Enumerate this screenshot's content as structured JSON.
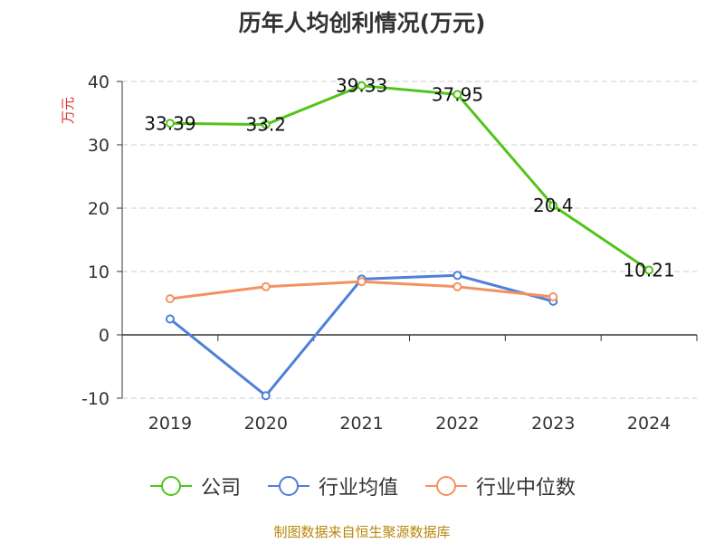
{
  "chart_data": {
    "type": "line",
    "title": "历年人均创利情况(万元)",
    "ylabel": "万元",
    "xlabel": "",
    "categories": [
      "2019",
      "2020",
      "2021",
      "2022",
      "2023",
      "2024"
    ],
    "ylim": [
      -10,
      40
    ],
    "yticks": [
      "-10",
      "0",
      "10",
      "20",
      "30",
      "40"
    ],
    "grid": true,
    "legend_position": "bottom",
    "series": [
      {
        "name": "公司",
        "color": "#52c41a",
        "values": [
          33.39,
          33.2,
          39.33,
          37.95,
          20.4,
          10.21
        ],
        "labels": [
          "33.39",
          "33.2",
          "39.33",
          "37.95",
          "20.4",
          "10.21"
        ]
      },
      {
        "name": "行业均值",
        "color": "#4f7fd9",
        "values": [
          2.5,
          -9.6,
          8.8,
          9.4,
          5.3,
          null
        ]
      },
      {
        "name": "行业中位数",
        "color": "#f59160",
        "values": [
          5.7,
          7.6,
          8.4,
          7.6,
          6.0,
          null
        ]
      }
    ]
  },
  "source": "制图数据来自恒生聚源数据库"
}
